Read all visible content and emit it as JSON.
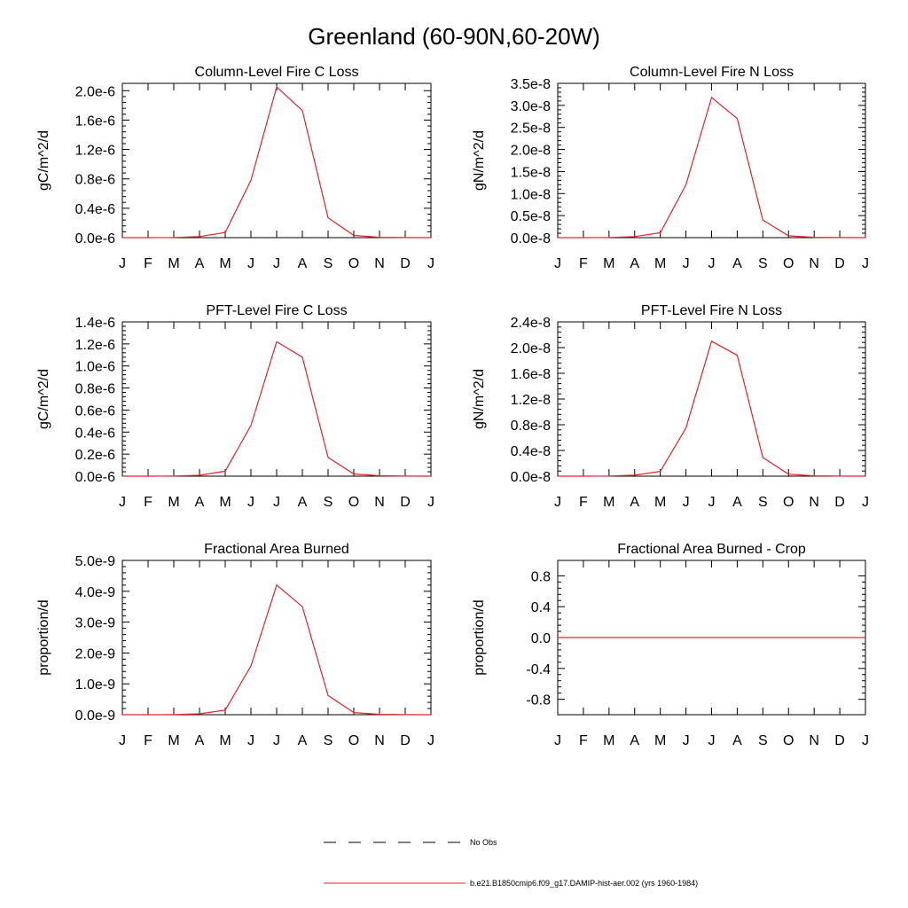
{
  "page": {
    "title": "Greenland (60-90N,60-20W)"
  },
  "legend": {
    "entries": [
      {
        "label": "No Obs",
        "style": "dashed",
        "color": "#000000"
      },
      {
        "label": "b.e21.B1850cmip6.f09_g17.DAMIP-hist-aer.002 (yrs 1960-1984)",
        "style": "solid",
        "color": "#e8202a"
      }
    ]
  },
  "chart_data": [
    {
      "type": "line",
      "title": "Column-Level Fire C Loss",
      "ylabel": "gC/m^2/d",
      "categories": [
        "J",
        "F",
        "M",
        "A",
        "M",
        "J",
        "J",
        "A",
        "S",
        "O",
        "N",
        "D",
        "J"
      ],
      "ylim": [
        0,
        2.1e-06
      ],
      "yticks": [
        0,
        4e-07,
        8e-07,
        1.2e-06,
        1.6e-06,
        2e-06
      ],
      "ytick_labels": [
        "0.0e-6",
        "0.4e-6",
        "0.8e-6",
        "1.2e-6",
        "1.6e-6",
        "2.0e-6"
      ],
      "series": [
        {
          "color": "#e8202a",
          "values": [
            0,
            0,
            3e-09,
            1.5e-08,
            7e-08,
            7.8e-07,
            2.05e-06,
            1.73e-06,
            2.7e-07,
            3e-08,
            5e-09,
            1e-09,
            0
          ]
        }
      ]
    },
    {
      "type": "line",
      "title": "Column-Level Fire N Loss",
      "ylabel": "gN/m^2/d",
      "categories": [
        "J",
        "F",
        "M",
        "A",
        "M",
        "J",
        "J",
        "A",
        "S",
        "O",
        "N",
        "D",
        "J"
      ],
      "ylim": [
        0,
        3.5e-08
      ],
      "yticks": [
        0,
        5e-09,
        1e-08,
        1.5e-08,
        2e-08,
        2.5e-08,
        3e-08,
        3.5e-08
      ],
      "ytick_labels": [
        "0.0e-8",
        "0.5e-8",
        "1.0e-8",
        "1.5e-8",
        "2.0e-8",
        "2.5e-8",
        "3.0e-8",
        "3.5e-8"
      ],
      "series": [
        {
          "color": "#e8202a",
          "values": [
            0,
            0,
            5e-11,
            2.5e-10,
            1.1e-09,
            1.2e-08,
            3.18e-08,
            2.7e-08,
            4e-09,
            4e-10,
            8e-11,
            2e-11,
            0
          ]
        }
      ]
    },
    {
      "type": "line",
      "title": "PFT-Level Fire C Loss",
      "ylabel": "gC/m^2/d",
      "categories": [
        "J",
        "F",
        "M",
        "A",
        "M",
        "J",
        "J",
        "A",
        "S",
        "O",
        "N",
        "D",
        "J"
      ],
      "ylim": [
        0,
        1.4e-06
      ],
      "yticks": [
        0,
        2e-07,
        4e-07,
        6e-07,
        8e-07,
        1e-06,
        1.2e-06,
        1.4e-06
      ],
      "ytick_labels": [
        "0.0e-6",
        "0.2e-6",
        "0.4e-6",
        "0.6e-6",
        "0.8e-6",
        "1.0e-6",
        "1.2e-6",
        "1.4e-6"
      ],
      "series": [
        {
          "color": "#e8202a",
          "values": [
            0,
            0,
            2e-09,
            8e-09,
            4.5e-08,
            4.6e-07,
            1.22e-06,
            1.08e-06,
            1.7e-07,
            2e-08,
            4e-09,
            1e-09,
            0
          ]
        }
      ]
    },
    {
      "type": "line",
      "title": "PFT-Level Fire N Loss",
      "ylabel": "gN/m^2/d",
      "categories": [
        "J",
        "F",
        "M",
        "A",
        "M",
        "J",
        "J",
        "A",
        "S",
        "O",
        "N",
        "D",
        "J"
      ],
      "ylim": [
        0,
        2.4e-08
      ],
      "yticks": [
        0,
        4e-09,
        8e-09,
        1.2e-08,
        1.6e-08,
        2e-08,
        2.4e-08
      ],
      "ytick_labels": [
        "0.0e-8",
        "0.4e-8",
        "0.8e-8",
        "1.2e-8",
        "1.6e-8",
        "2.0e-8",
        "2.4e-8"
      ],
      "series": [
        {
          "color": "#e8202a",
          "values": [
            0,
            0,
            3e-11,
            1.5e-10,
            7.5e-10,
            7.5e-09,
            2.1e-08,
            1.88e-08,
            2.9e-09,
            3e-10,
            6e-11,
            1e-11,
            0
          ]
        }
      ]
    },
    {
      "type": "line",
      "title": "Fractional Area Burned",
      "ylabel": "proportion/d",
      "categories": [
        "J",
        "F",
        "M",
        "A",
        "M",
        "J",
        "J",
        "A",
        "S",
        "O",
        "N",
        "D",
        "J"
      ],
      "ylim": [
        0,
        5e-09
      ],
      "yticks": [
        0,
        1e-09,
        2e-09,
        3e-09,
        4e-09,
        5e-09
      ],
      "ytick_labels": [
        "0.0e-9",
        "1.0e-9",
        "2.0e-9",
        "3.0e-9",
        "4.0e-9",
        "5.0e-9"
      ],
      "series": [
        {
          "color": "#e8202a",
          "values": [
            0,
            0,
            5e-12,
            3e-11,
            1.5e-10,
            1.58e-09,
            4.2e-09,
            3.5e-09,
            6.2e-10,
            7e-11,
            1.2e-11,
            2e-12,
            0
          ]
        }
      ]
    },
    {
      "type": "line",
      "title": "Fractional Area Burned - Crop",
      "ylabel": "proportion/d",
      "categories": [
        "J",
        "F",
        "M",
        "A",
        "M",
        "J",
        "J",
        "A",
        "S",
        "O",
        "N",
        "D",
        "J"
      ],
      "ylim": [
        -1.0,
        1.0
      ],
      "yticks": [
        -0.8,
        -0.4,
        0.0,
        0.4,
        0.8
      ],
      "ytick_labels": [
        "-0.8",
        "-0.4",
        "0.0",
        "0.4",
        "0.8"
      ],
      "series": [
        {
          "color": "#e8202a",
          "values": [
            0,
            0,
            0,
            0,
            0,
            0,
            0,
            0,
            0,
            0,
            0,
            0,
            0
          ]
        }
      ]
    }
  ]
}
